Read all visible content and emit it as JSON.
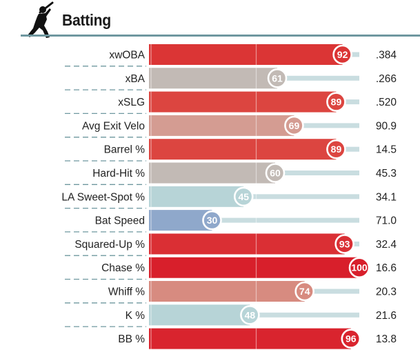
{
  "header": {
    "title": "Batting",
    "icon": "batter-silhouette-icon"
  },
  "colors": {
    "rule": "#6e979f",
    "track": "#c9dde0",
    "dash": "#6e979f"
  },
  "chart_data": {
    "type": "bar",
    "orientation": "horizontal",
    "title": "Batting",
    "xlim": [
      0,
      100
    ],
    "reference_lines": [
      50
    ],
    "categories": [
      "xwOBA",
      "xBA",
      "xSLG",
      "Avg Exit Velo",
      "Barrel %",
      "Hard-Hit %",
      "LA Sweet-Spot %",
      "Bat Speed",
      "Squared-Up %",
      "Chase %",
      "Whiff %",
      "K %",
      "BB %"
    ],
    "percentiles": [
      92,
      61,
      89,
      69,
      89,
      60,
      45,
      30,
      93,
      100,
      74,
      48,
      96
    ],
    "stat_values": [
      ".384",
      ".266",
      ".520",
      "90.9",
      "14.5",
      "45.3",
      "34.1",
      "71.0",
      "32.4",
      "16.6",
      "20.3",
      "21.6",
      "13.8"
    ],
    "bar_colors": [
      "#db3535",
      "#c2bab5",
      "#dc4540",
      "#d49c92",
      "#dc4540",
      "#c2bab5",
      "#b7d4d7",
      "#8fa8cb",
      "#da2f34",
      "#d81f2b",
      "#d78b80",
      "#b7d4d7",
      "#d9242e"
    ]
  }
}
